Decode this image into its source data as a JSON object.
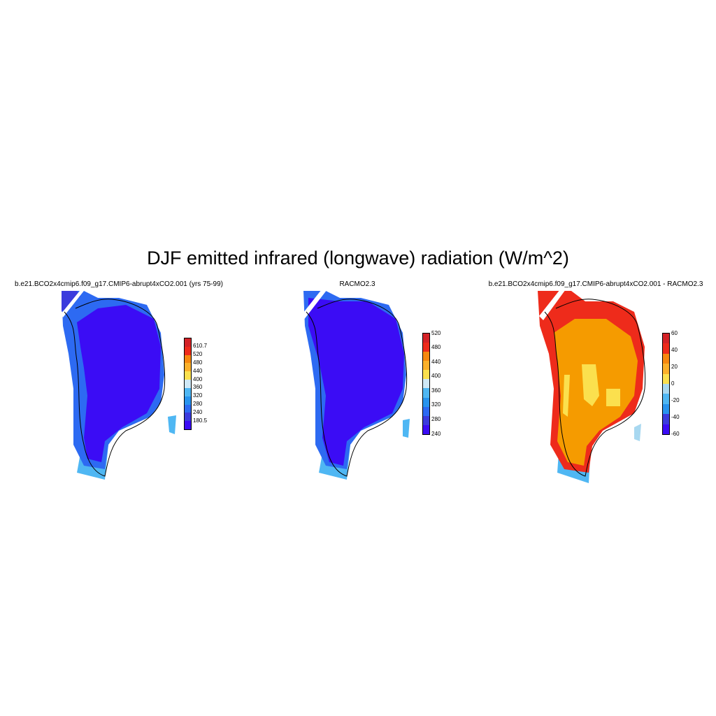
{
  "figure": {
    "title": "DJF emitted infrared (longwave) radiation (W/m^2)"
  },
  "panels": [
    {
      "title": "b.e21.BCO2x4cmip6.f09_g17.CMIP6-abrupt4xCO2.001 (yrs 75-99)",
      "colorbar": {
        "colors": [
          "#3b0cf5",
          "#3b3bdd",
          "#2d6af2",
          "#2894ee",
          "#4fb7f3",
          "#cfe8f6",
          "#fbe04e",
          "#fbb02a",
          "#f6880f",
          "#ee2b1b",
          "#d42227"
        ],
        "labels": [
          "180.5",
          "240",
          "280",
          "320",
          "360",
          "400",
          "440",
          "480",
          "520",
          "610.7"
        ]
      },
      "map_fill": {
        "interior": "#3b0cf5",
        "coast": "#3b3bdd",
        "margin": "#2d6af2",
        "edge": "#4fb7f3"
      }
    },
    {
      "title": "RACMO2.3",
      "colorbar": {
        "colors": [
          "#3b0cf5",
          "#3b3bdd",
          "#2d6af2",
          "#2894ee",
          "#4fb7f3",
          "#cfe8f6",
          "#fbe04e",
          "#fbb02a",
          "#f6880f",
          "#ee2b1b",
          "#d42227"
        ],
        "labels": [
          "240",
          "280",
          "320",
          "360",
          "400",
          "440",
          "480",
          "520"
        ]
      },
      "map_fill": {
        "interior": "#3b0cf5",
        "coast": "#3b3bdd",
        "margin": "#2d6af2",
        "edge": "#4fb7f3"
      }
    },
    {
      "title": "b.e21.BCO2x4cmip6.f09_g17.CMIP6-abrupt4xCO2.001 - RACMO2.3",
      "colorbar": {
        "colors": [
          "#3b0cf5",
          "#3b3bdd",
          "#2894ee",
          "#4fb7f3",
          "#a8d8f0",
          "#fbe04e",
          "#fbb02a",
          "#f6880f",
          "#ee2b1b",
          "#d42227"
        ],
        "labels": [
          "-60",
          "-40",
          "-20",
          "0",
          "20",
          "40",
          "60"
        ]
      },
      "map_fill": {
        "interior": "#f59b00",
        "coast": "#ee2b1b",
        "margin": "#fbe04e",
        "edge": "#4fb7f3"
      }
    }
  ]
}
